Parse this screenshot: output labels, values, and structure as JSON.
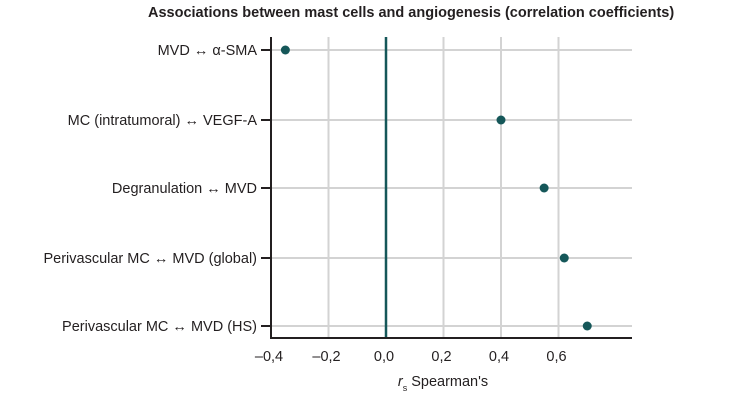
{
  "chart_data": {
    "type": "scatter",
    "title": "Associations between mast cells and angiogenesis (correlation coefficients)",
    "xlabel_italic": "r",
    "xlabel_sub": "s",
    "xlabel_rest": "Spearman's",
    "ylabel": "",
    "xlim": [
      -0.4,
      0.85
    ],
    "xticks": [
      -0.4,
      -0.2,
      0.0,
      0.2,
      0.4,
      0.6
    ],
    "xtick_labels": [
      "–0,4",
      "–0,2",
      "0,0",
      "0,2",
      "0,4",
      "0,6"
    ],
    "grid": true,
    "reference_line_x": 0.0,
    "categories": [
      "MVD ↔ α-SMA",
      "MC (intratumoral) ↔ VEGF-A",
      "Degranulation ↔ MVD",
      "Perivascular MC ↔ MVD (global)",
      "Perivascular MC ↔ MVD (HS)"
    ],
    "values": [
      -0.35,
      0.4,
      0.55,
      0.62,
      0.7
    ],
    "colors": {
      "point": "#155759",
      "reference_line": "#155759",
      "axis": "#231f20",
      "grid": "#d3d3d3"
    }
  }
}
